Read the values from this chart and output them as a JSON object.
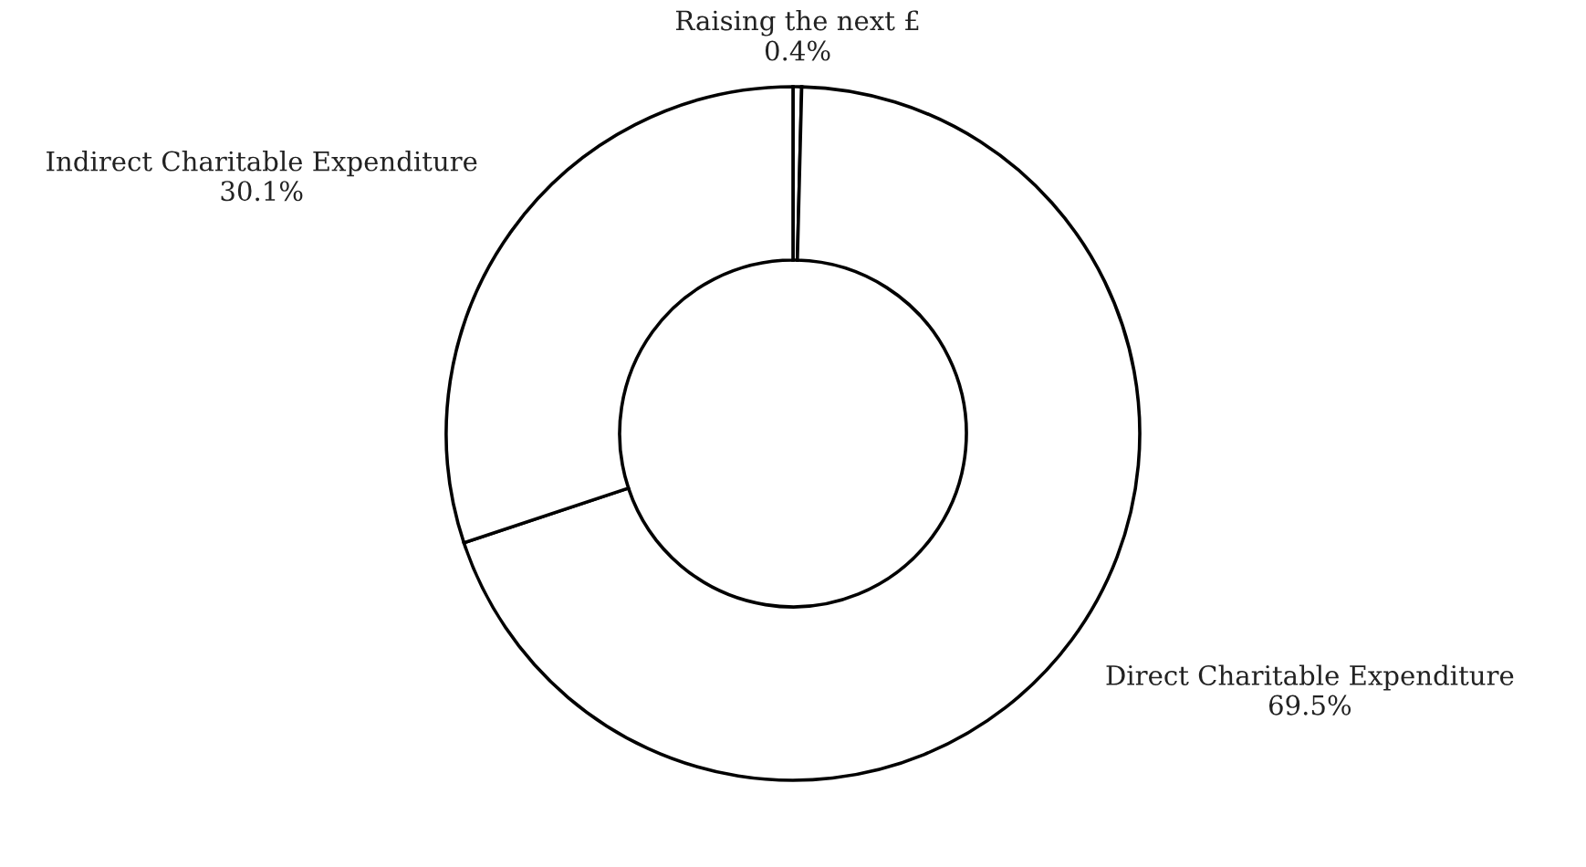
{
  "chart_data": {
    "type": "donut",
    "categories": [
      "Raising the next £",
      "Direct Charitable Expenditure",
      "Indirect Charitable Expenditure"
    ],
    "values": [
      0.4,
      69.5,
      30.1
    ],
    "value_labels": [
      "0.4%",
      "69.5%",
      "30.1%"
    ],
    "colors": [
      "#ffffff",
      "#ffffff",
      "#ffffff"
    ]
  }
}
